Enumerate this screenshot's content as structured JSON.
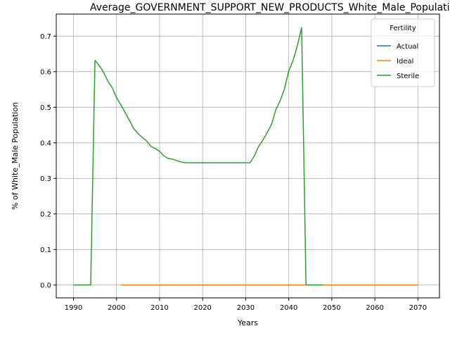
{
  "chart_data": {
    "type": "line",
    "title": "Average_GOVERNMENT_SUPPORT_NEW_PRODUCTS_White_Male_Population",
    "xlabel": "Years",
    "ylabel": "% of White_Male Population",
    "xlim": [
      1986,
      2075
    ],
    "ylim": [
      -0.036,
      0.762
    ],
    "xticks": [
      1990,
      2000,
      2010,
      2020,
      2030,
      2040,
      2050,
      2060,
      2070
    ],
    "xtick_labels": [
      "1990",
      "2000",
      "2010",
      "2020",
      "2030",
      "2040",
      "2050",
      "2060",
      "2070"
    ],
    "yticks": [
      0.0,
      0.1,
      0.2,
      0.3,
      0.4,
      0.5,
      0.6,
      0.7
    ],
    "ytick_labels": [
      "0.0",
      "0.1",
      "0.2",
      "0.3",
      "0.4",
      "0.5",
      "0.6",
      "0.7"
    ],
    "grid": true,
    "legend": {
      "title": "Fertility",
      "position": "top-right"
    },
    "series": [
      {
        "name": "Actual",
        "color": "#1f77b4",
        "x": [
          2001,
          2070
        ],
        "y": [
          0.0,
          0.0
        ]
      },
      {
        "name": "Ideal",
        "color": "#ff7f0e",
        "x": [
          2001,
          2070
        ],
        "y": [
          0.0,
          0.0
        ]
      },
      {
        "name": "Sterile",
        "color": "#2ca02c",
        "x": [
          1990,
          1991,
          1992,
          1993,
          1994,
          1995,
          1996,
          1997,
          1998,
          1999,
          2000,
          2001,
          2002,
          2003,
          2004,
          2005,
          2006,
          2007,
          2008,
          2009,
          2010,
          2011,
          2012,
          2013,
          2014,
          2015,
          2016,
          2017,
          2018,
          2019,
          2020,
          2021,
          2022,
          2023,
          2024,
          2025,
          2026,
          2027,
          2028,
          2029,
          2030,
          2031,
          2032,
          2033,
          2034,
          2035,
          2036,
          2037,
          2038,
          2039,
          2040,
          2041,
          2042,
          2043,
          2044,
          2045,
          2046,
          2047,
          2048
        ],
        "y": [
          0.0,
          0.0,
          0.0,
          0.0,
          0.0,
          0.632,
          0.617,
          0.598,
          0.573,
          0.555,
          0.527,
          0.507,
          0.485,
          0.463,
          0.44,
          0.426,
          0.415,
          0.405,
          0.39,
          0.384,
          0.376,
          0.363,
          0.356,
          0.354,
          0.35,
          0.346,
          0.344,
          0.344,
          0.344,
          0.344,
          0.344,
          0.344,
          0.344,
          0.344,
          0.344,
          0.344,
          0.344,
          0.344,
          0.344,
          0.344,
          0.344,
          0.344,
          0.363,
          0.39,
          0.408,
          0.429,
          0.452,
          0.493,
          0.518,
          0.552,
          0.602,
          0.632,
          0.673,
          0.724,
          0.0,
          0.0,
          0.0,
          0.0,
          0.0
        ]
      }
    ]
  }
}
